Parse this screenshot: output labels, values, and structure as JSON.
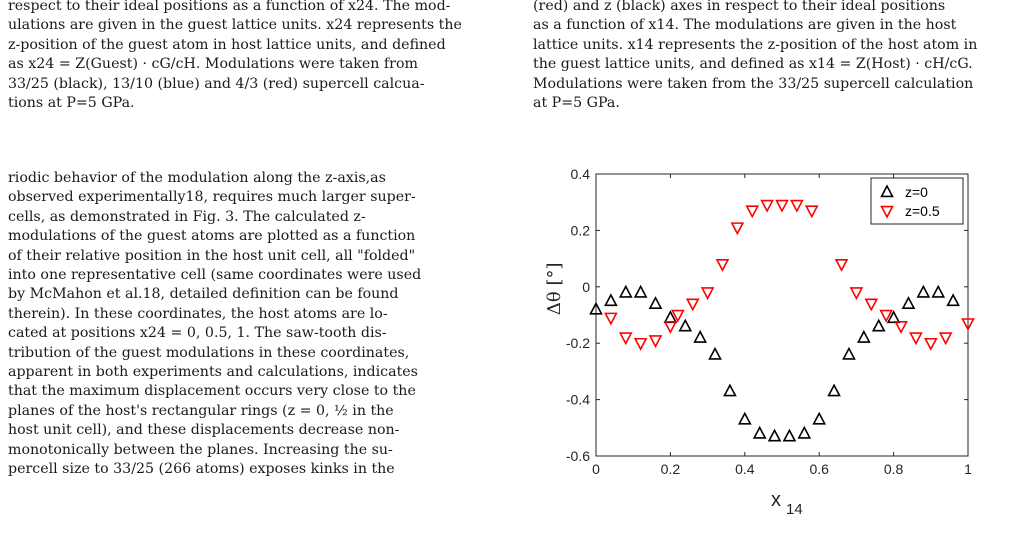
{
  "left_caption_lines": [
    "respect to their ideal positions as a function of x24. The mod-",
    "ulations are given in the guest lattice units. x24 represents the",
    "z-position of the guest atom in host lattice units, and defined",
    "as x24 = Z(Guest) · cG/cH. Modulations were taken from",
    "33/25 (black), 13/10 (blue) and 4/3 (red) supercell calcua-",
    "tions at P=5 GPa."
  ],
  "right_caption_lines": [
    "(red) and z (black) axes in respect to their ideal positions",
    "as a function of x14. The modulations are given in the host",
    "lattice units. x14 represents the z-position of the host atom in",
    "the guest lattice units, and defined as x14 = Z(Host) · cH/cG.",
    "Modulations were taken from the 33/25 supercell calculation",
    "at P=5 GPa."
  ],
  "body_lines": [
    "riodic behavior of the modulation along the z-axis,as",
    "observed experimentally18, requires much larger super-",
    "cells, as demonstrated in Fig. 3. The calculated z-",
    "modulations of the guest atoms are plotted as a function",
    "of their relative position in the host unit cell, all \"folded\"",
    "into one representative cell (same coordinates were used",
    "by McMahon et al.18, detailed definition can be found",
    "therein). In these coordinates, the host atoms are lo-",
    "cated at positions x24 = 0, 0.5, 1. The saw-tooth dis-",
    "tribution of the guest modulations in these coordinates,",
    "apparent in both experiments and calculations, indicates",
    "that the maximum displacement occurs very close to the",
    "planes of the host's rectangular rings (z = 0, ½ in the",
    "host unit cell), and these displacements decrease non-",
    "monotonically between the planes. Increasing the su-",
    "percell size to 33/25 (266 atoms) exposes kinks in the"
  ],
  "chart_data": {
    "type": "scatter",
    "xlabel": "x",
    "xlabel_sub": "14",
    "ylabel": "Δθ [°]",
    "xlim": [
      0,
      1
    ],
    "ylim": [
      -0.6,
      0.4
    ],
    "xticks": [
      "0",
      "0.2",
      "0.4",
      "0.6",
      "0.8",
      "1"
    ],
    "yticks": [
      "-0.6",
      "-0.4",
      "-0.2",
      "0",
      "0.2",
      "0.4"
    ],
    "grid": false,
    "legend_position": "top-right",
    "series": [
      {
        "name": "z=0",
        "marker": "triangle-up",
        "color": "#000000",
        "points": [
          [
            0.0,
            -0.08
          ],
          [
            0.04,
            -0.05
          ],
          [
            0.08,
            -0.02
          ],
          [
            0.12,
            -0.02
          ],
          [
            0.16,
            -0.06
          ],
          [
            0.2,
            -0.11
          ],
          [
            0.24,
            -0.14
          ],
          [
            0.28,
            -0.18
          ],
          [
            0.32,
            -0.24
          ],
          [
            0.36,
            -0.37
          ],
          [
            0.4,
            -0.47
          ],
          [
            0.44,
            -0.52
          ],
          [
            0.48,
            -0.53
          ],
          [
            0.52,
            -0.53
          ],
          [
            0.56,
            -0.52
          ],
          [
            0.6,
            -0.47
          ],
          [
            0.64,
            -0.37
          ],
          [
            0.68,
            -0.24
          ],
          [
            0.72,
            -0.18
          ],
          [
            0.76,
            -0.14
          ],
          [
            0.8,
            -0.11
          ],
          [
            0.84,
            -0.06
          ],
          [
            0.88,
            -0.02
          ],
          [
            0.92,
            -0.02
          ],
          [
            0.96,
            -0.05
          ]
        ]
      },
      {
        "name": "z=0.5",
        "marker": "triangle-down",
        "color": "#ff0000",
        "points": [
          [
            0.04,
            -0.11
          ],
          [
            0.08,
            -0.18
          ],
          [
            0.12,
            -0.2
          ],
          [
            0.16,
            -0.19
          ],
          [
            0.2,
            -0.14
          ],
          [
            0.22,
            -0.1
          ],
          [
            0.26,
            -0.06
          ],
          [
            0.3,
            -0.02
          ],
          [
            0.34,
            0.08
          ],
          [
            0.38,
            0.21
          ],
          [
            0.42,
            0.27
          ],
          [
            0.46,
            0.29
          ],
          [
            0.5,
            0.29
          ],
          [
            0.54,
            0.29
          ],
          [
            0.58,
            0.27
          ],
          [
            0.66,
            0.08
          ],
          [
            0.7,
            -0.02
          ],
          [
            0.74,
            -0.06
          ],
          [
            0.78,
            -0.1
          ],
          [
            0.82,
            -0.14
          ],
          [
            0.86,
            -0.18
          ],
          [
            0.9,
            -0.2
          ],
          [
            0.94,
            -0.18
          ],
          [
            1.0,
            -0.13
          ]
        ]
      }
    ]
  }
}
